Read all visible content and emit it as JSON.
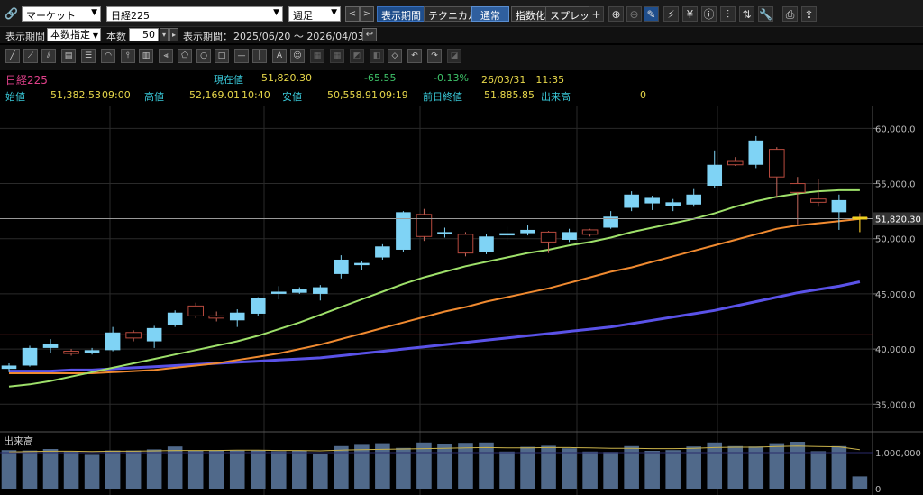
{
  "toolbar": {
    "market_select": "マーケット",
    "symbol_select": "日経225",
    "period_select": "週足",
    "btn_display_period": "表示期間",
    "btn_technical": "テクニカル",
    "btn_normal": "通常",
    "btn_index": "指数化",
    "btn_spread": "スプレッド"
  },
  "row2": {
    "display_period_label": "表示期間",
    "mode_select": "本数指定",
    "count_label": "本数",
    "count_value": "50",
    "range_label": "表示期間：",
    "range_value": "2025/06/20 ～ 2026/04/03"
  },
  "quote": {
    "name": "日経225",
    "current_label": "現在値",
    "current_value": "51,820.30",
    "change": "-65.55",
    "change_pct": "-0.13%",
    "datetime": "26/03/31　11:35",
    "open_label": "始値",
    "open_value": "51,382.53",
    "open_time": "09:00",
    "high_label": "高値",
    "high_value": "52,169.01",
    "high_time": "10:40",
    "low_label": "安値",
    "low_value": "50,558.91",
    "low_time": "09:19",
    "prev_label": "前日終値",
    "prev_value": "51,885.85",
    "volume_label": "出来高",
    "volume_value": "0"
  },
  "colors": {
    "up_candle": "#7fd3f5",
    "down_candle": "#b84a3e",
    "ma_short": "#9ee06a",
    "ma_mid": "#f08a30",
    "ma_long": "#5a52e8",
    "price_name": "#e0408a",
    "label_cyan": "#39c8d8",
    "value_yellow": "#e8d84a",
    "change_green": "#3ec46a"
  },
  "chart_data": {
    "type": "candlestick",
    "price_axis_ticks": [
      "60,000.0",
      "55,000.0",
      "50,000.0",
      "45,000.0",
      "40,000.0",
      "35,000.0"
    ],
    "price_ylim": [
      32900,
      61500
    ],
    "current_price_label": "51,820.30",
    "volume_label": "出来高",
    "volume_axis_ticks": [
      "1,000,000",
      "0"
    ],
    "volume_ylim": [
      0,
      1500000
    ],
    "candles": [
      {
        "o": 38200,
        "h": 38700,
        "l": 37900,
        "c": 38500
      },
      {
        "o": 38500,
        "h": 40300,
        "l": 38400,
        "c": 40100
      },
      {
        "o": 40100,
        "h": 40900,
        "l": 39600,
        "c": 40500
      },
      {
        "o": 39800,
        "h": 40000,
        "l": 39400,
        "c": 39600
      },
      {
        "o": 39600,
        "h": 40100,
        "l": 39500,
        "c": 39900
      },
      {
        "o": 39900,
        "h": 42000,
        "l": 39800,
        "c": 41500
      },
      {
        "o": 41500,
        "h": 41700,
        "l": 40700,
        "c": 41000
      },
      {
        "o": 40700,
        "h": 42100,
        "l": 40100,
        "c": 41900
      },
      {
        "o": 42200,
        "h": 43500,
        "l": 42000,
        "c": 43300
      },
      {
        "o": 43900,
        "h": 44200,
        "l": 42800,
        "c": 43000
      },
      {
        "o": 43000,
        "h": 43400,
        "l": 42500,
        "c": 42800
      },
      {
        "o": 42600,
        "h": 43600,
        "l": 42000,
        "c": 43300
      },
      {
        "o": 43200,
        "h": 44700,
        "l": 43000,
        "c": 44600
      },
      {
        "o": 45000,
        "h": 45700,
        "l": 44500,
        "c": 45200
      },
      {
        "o": 45100,
        "h": 45600,
        "l": 45000,
        "c": 45400
      },
      {
        "o": 45000,
        "h": 45800,
        "l": 44400,
        "c": 45600
      },
      {
        "o": 46800,
        "h": 48500,
        "l": 46400,
        "c": 48100
      },
      {
        "o": 47600,
        "h": 48000,
        "l": 47200,
        "c": 47800
      },
      {
        "o": 48300,
        "h": 49500,
        "l": 48100,
        "c": 49300
      },
      {
        "o": 49000,
        "h": 52500,
        "l": 48800,
        "c": 52400
      },
      {
        "o": 52200,
        "h": 52700,
        "l": 49800,
        "c": 50200
      },
      {
        "o": 50400,
        "h": 51000,
        "l": 50100,
        "c": 50600
      },
      {
        "o": 50400,
        "h": 50600,
        "l": 48400,
        "c": 48700
      },
      {
        "o": 48800,
        "h": 50400,
        "l": 48600,
        "c": 50200
      },
      {
        "o": 50300,
        "h": 51100,
        "l": 49800,
        "c": 50500
      },
      {
        "o": 50500,
        "h": 51200,
        "l": 50300,
        "c": 50800
      },
      {
        "o": 50600,
        "h": 50700,
        "l": 48700,
        "c": 49700
      },
      {
        "o": 49900,
        "h": 50900,
        "l": 49700,
        "c": 50600
      },
      {
        "o": 50800,
        "h": 50900,
        "l": 50200,
        "c": 50400
      },
      {
        "o": 51000,
        "h": 52500,
        "l": 50900,
        "c": 52000
      },
      {
        "o": 52800,
        "h": 54300,
        "l": 52500,
        "c": 54000
      },
      {
        "o": 53200,
        "h": 53900,
        "l": 52600,
        "c": 53700
      },
      {
        "o": 53000,
        "h": 53600,
        "l": 52500,
        "c": 53300
      },
      {
        "o": 53100,
        "h": 54500,
        "l": 52900,
        "c": 54000
      },
      {
        "o": 54800,
        "h": 58000,
        "l": 54600,
        "c": 56700
      },
      {
        "o": 57000,
        "h": 57400,
        "l": 56600,
        "c": 56700
      },
      {
        "o": 56700,
        "h": 59300,
        "l": 56400,
        "c": 58900
      },
      {
        "o": 58100,
        "h": 58300,
        "l": 53700,
        "c": 55600
      },
      {
        "o": 55000,
        "h": 55600,
        "l": 51300,
        "c": 54200
      },
      {
        "o": 53600,
        "h": 55400,
        "l": 52900,
        "c": 53300
      },
      {
        "o": 52400,
        "h": 54000,
        "l": 50800,
        "c": 53500
      },
      {
        "o": 51900,
        "h": 52300,
        "l": 50600,
        "c": 51800
      }
    ],
    "volume": [
      1070000,
      1060000,
      1100000,
      1030000,
      940000,
      1060000,
      1060000,
      1090000,
      1170000,
      1060000,
      1070000,
      1060000,
      1060000,
      1040000,
      1060000,
      950000,
      1180000,
      1240000,
      1260000,
      1130000,
      1280000,
      1250000,
      1270000,
      1280000,
      1030000,
      1160000,
      1190000,
      1120000,
      1030000,
      1020000,
      1180000,
      1050000,
      1070000,
      1170000,
      1280000,
      1180000,
      1170000,
      1260000,
      1300000,
      1040000,
      1180000,
      340000
    ],
    "ma_short": [
      36600,
      36800,
      37100,
      37500,
      37900,
      38300,
      38700,
      39100,
      39500,
      39900,
      40300,
      40700,
      41200,
      41800,
      42400,
      43100,
      43800,
      44500,
      45200,
      45900,
      46500,
      47000,
      47500,
      47900,
      48300,
      48700,
      49000,
      49400,
      49700,
      50100,
      50600,
      51000,
      51400,
      51800,
      52300,
      52900,
      53400,
      53800,
      54100,
      54300,
      54400,
      54400
    ],
    "ma_mid": [
      37800,
      37800,
      37800,
      37800,
      37800,
      37900,
      38000,
      38100,
      38300,
      38500,
      38700,
      39000,
      39300,
      39600,
      40000,
      40400,
      40900,
      41400,
      41900,
      42400,
      42900,
      43400,
      43800,
      44300,
      44700,
      45100,
      45500,
      46000,
      46500,
      47000,
      47400,
      47900,
      48400,
      48900,
      49400,
      49900,
      50400,
      50900,
      51200,
      51400,
      51600,
      51800
    ],
    "ma_long": [
      38000,
      38000,
      38000,
      38100,
      38100,
      38200,
      38300,
      38400,
      38500,
      38600,
      38700,
      38800,
      38900,
      39000,
      39100,
      39200,
      39400,
      39600,
      39800,
      40000,
      40200,
      40400,
      40600,
      40800,
      41000,
      41200,
      41400,
      41600,
      41800,
      42000,
      42300,
      42600,
      42900,
      43200,
      43500,
      43900,
      44300,
      44700,
      45100,
      45400,
      45700,
      46100
    ],
    "volume_ma": [
      1020000,
      1030000,
      1040000,
      1040000,
      1030000,
      1040000,
      1040000,
      1050000,
      1060000,
      1060000,
      1060000,
      1070000,
      1070000,
      1060000,
      1060000,
      1050000,
      1070000,
      1080000,
      1090000,
      1100000,
      1110000,
      1120000,
      1130000,
      1140000,
      1130000,
      1130000,
      1140000,
      1140000,
      1130000,
      1120000,
      1120000,
      1110000,
      1110000,
      1120000,
      1140000,
      1150000,
      1150000,
      1170000,
      1180000,
      1170000,
      1160000,
      1080000
    ]
  }
}
